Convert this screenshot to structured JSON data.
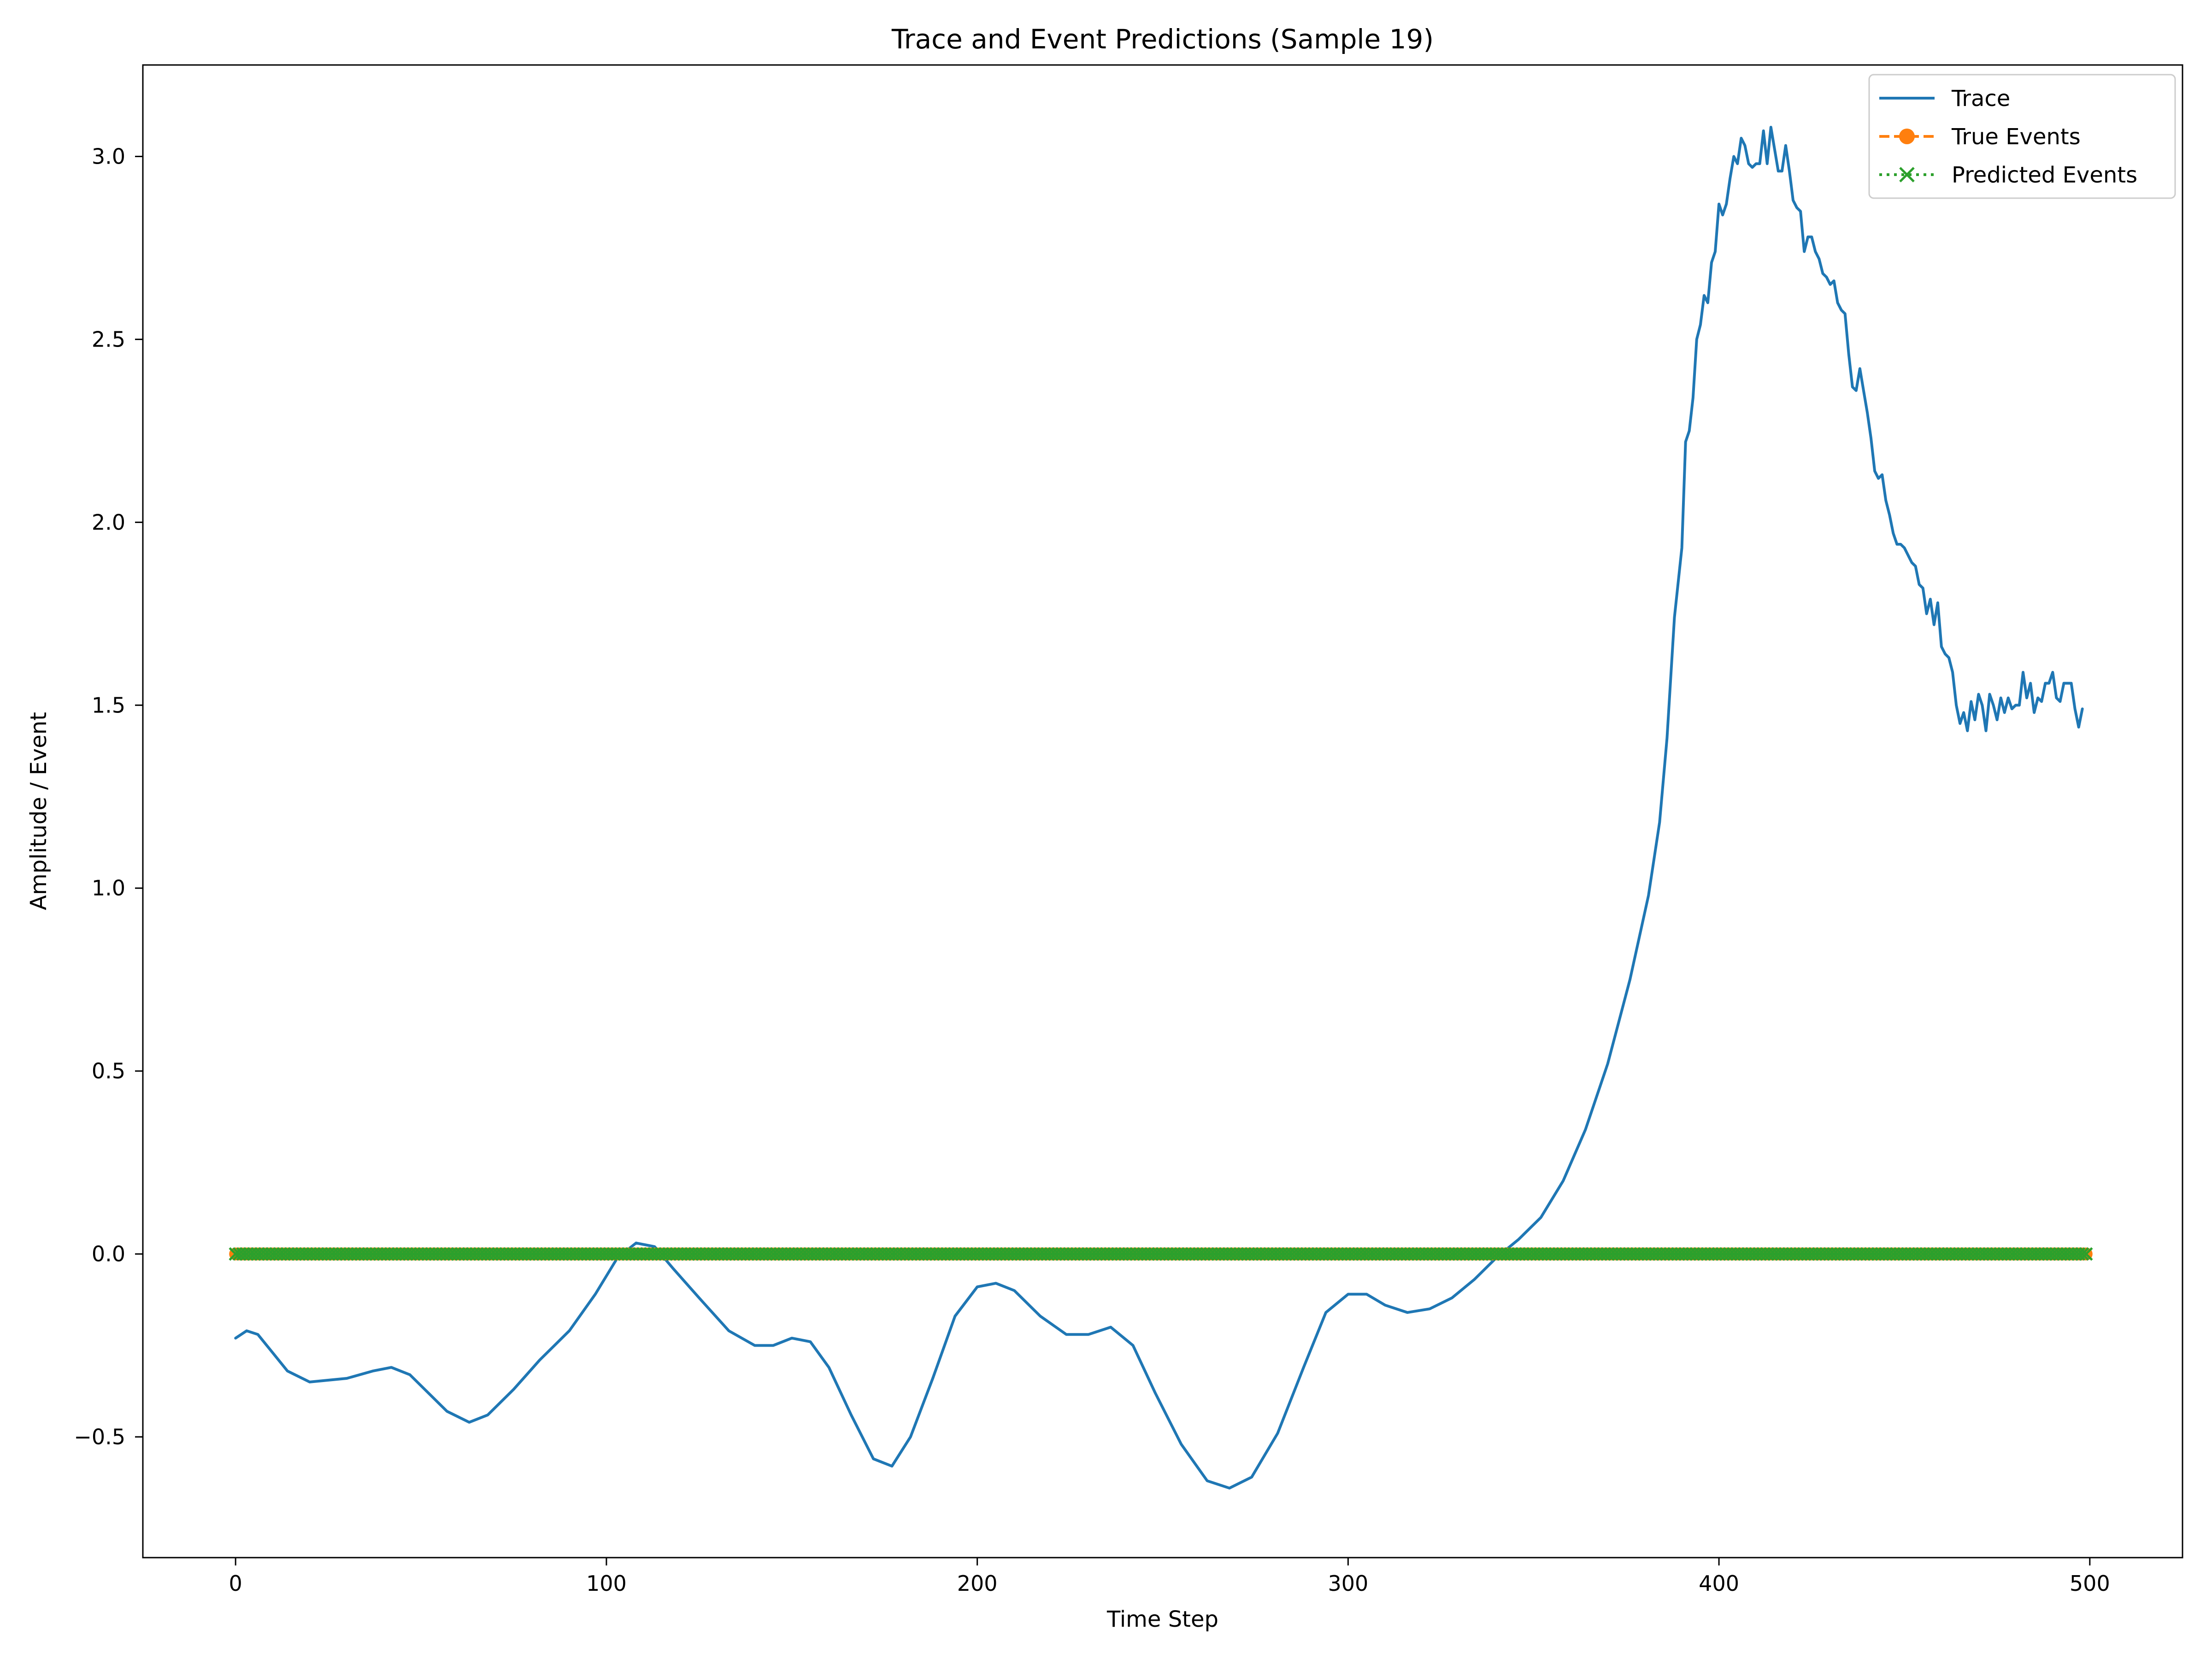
{
  "chart_data": {
    "type": "line",
    "title": "Trace and Event Predictions (Sample 19)",
    "xlabel": "Time Step",
    "ylabel": "Amplitude / Event",
    "xlim": [
      -25,
      525
    ],
    "ylim": [
      -0.83,
      3.25
    ],
    "xticks": [
      0,
      100,
      200,
      300,
      400,
      500
    ],
    "xtick_labels": [
      "0",
      "100",
      "200",
      "300",
      "400",
      "500"
    ],
    "yticks": [
      -0.5,
      0.0,
      0.5,
      1.0,
      1.5,
      2.0,
      2.5,
      3.0
    ],
    "ytick_labels": [
      "−0.5",
      "0.0",
      "0.5",
      "1.0",
      "1.5",
      "2.0",
      "2.5",
      "3.0"
    ],
    "grid": false,
    "legend_position": "top-right",
    "series": [
      {
        "name": "Trace",
        "color": "#1f77b4",
        "line_style": "solid",
        "marker": "none",
        "points": [
          [
            0,
            -0.23
          ],
          [
            3,
            -0.21
          ],
          [
            6,
            -0.22
          ],
          [
            10,
            -0.27
          ],
          [
            14,
            -0.32
          ],
          [
            20,
            -0.35
          ],
          [
            30,
            -0.34
          ],
          [
            37,
            -0.32
          ],
          [
            42,
            -0.31
          ],
          [
            47,
            -0.33
          ],
          [
            52,
            -0.38
          ],
          [
            57,
            -0.43
          ],
          [
            63,
            -0.46
          ],
          [
            68,
            -0.44
          ],
          [
            75,
            -0.37
          ],
          [
            82,
            -0.29
          ],
          [
            90,
            -0.21
          ],
          [
            97,
            -0.11
          ],
          [
            103,
            -0.01
          ],
          [
            108,
            0.03
          ],
          [
            113,
            0.02
          ],
          [
            118,
            -0.04
          ],
          [
            125,
            -0.12
          ],
          [
            133,
            -0.21
          ],
          [
            140,
            -0.25
          ],
          [
            145,
            -0.25
          ],
          [
            150,
            -0.23
          ],
          [
            155,
            -0.24
          ],
          [
            160,
            -0.31
          ],
          [
            166,
            -0.44
          ],
          [
            172,
            -0.56
          ],
          [
            177,
            -0.58
          ],
          [
            182,
            -0.5
          ],
          [
            188,
            -0.34
          ],
          [
            194,
            -0.17
          ],
          [
            200,
            -0.09
          ],
          [
            205,
            -0.08
          ],
          [
            210,
            -0.1
          ],
          [
            217,
            -0.17
          ],
          [
            224,
            -0.22
          ],
          [
            230,
            -0.22
          ],
          [
            236,
            -0.2
          ],
          [
            242,
            -0.25
          ],
          [
            248,
            -0.38
          ],
          [
            255,
            -0.52
          ],
          [
            262,
            -0.62
          ],
          [
            268,
            -0.64
          ],
          [
            274,
            -0.61
          ],
          [
            281,
            -0.49
          ],
          [
            288,
            -0.31
          ],
          [
            294,
            -0.16
          ],
          [
            300,
            -0.11
          ],
          [
            305,
            -0.11
          ],
          [
            310,
            -0.14
          ],
          [
            316,
            -0.16
          ],
          [
            322,
            -0.15
          ],
          [
            328,
            -0.12
          ],
          [
            334,
            -0.07
          ],
          [
            340,
            -0.01
          ],
          [
            346,
            0.04
          ],
          [
            352,
            0.1
          ],
          [
            358,
            0.2
          ],
          [
            364,
            0.34
          ],
          [
            370,
            0.52
          ],
          [
            376,
            0.75
          ],
          [
            381,
            0.98
          ],
          [
            384,
            1.18
          ],
          [
            386,
            1.41
          ],
          [
            388,
            1.74
          ],
          [
            390,
            1.93
          ],
          [
            391,
            2.22
          ],
          [
            392,
            2.25
          ],
          [
            393,
            2.34
          ],
          [
            394,
            2.5
          ],
          [
            395,
            2.54
          ],
          [
            396,
            2.62
          ],
          [
            397,
            2.6
          ],
          [
            398,
            2.71
          ],
          [
            399,
            2.74
          ],
          [
            400,
            2.87
          ],
          [
            401,
            2.84
          ],
          [
            402,
            2.87
          ],
          [
            403,
            2.94
          ],
          [
            404,
            3.0
          ],
          [
            405,
            2.98
          ],
          [
            406,
            3.05
          ],
          [
            407,
            3.03
          ],
          [
            408,
            2.98
          ],
          [
            409,
            2.97
          ],
          [
            410,
            2.98
          ],
          [
            411,
            2.98
          ],
          [
            412,
            3.07
          ],
          [
            413,
            2.98
          ],
          [
            414,
            3.08
          ],
          [
            415,
            3.02
          ],
          [
            416,
            2.96
          ],
          [
            417,
            2.96
          ],
          [
            418,
            3.03
          ],
          [
            419,
            2.96
          ],
          [
            420,
            2.88
          ],
          [
            421,
            2.86
          ],
          [
            422,
            2.85
          ],
          [
            423,
            2.74
          ],
          [
            424,
            2.78
          ],
          [
            425,
            2.78
          ],
          [
            426,
            2.74
          ],
          [
            427,
            2.72
          ],
          [
            428,
            2.68
          ],
          [
            429,
            2.67
          ],
          [
            430,
            2.65
          ],
          [
            431,
            2.66
          ],
          [
            432,
            2.6
          ],
          [
            433,
            2.58
          ],
          [
            434,
            2.57
          ],
          [
            435,
            2.46
          ],
          [
            436,
            2.37
          ],
          [
            437,
            2.36
          ],
          [
            438,
            2.42
          ],
          [
            439,
            2.36
          ],
          [
            440,
            2.3
          ],
          [
            441,
            2.23
          ],
          [
            442,
            2.14
          ],
          [
            443,
            2.12
          ],
          [
            444,
            2.13
          ],
          [
            445,
            2.06
          ],
          [
            446,
            2.02
          ],
          [
            447,
            1.97
          ],
          [
            448,
            1.94
          ],
          [
            449,
            1.94
          ],
          [
            450,
            1.93
          ],
          [
            451,
            1.91
          ],
          [
            452,
            1.89
          ],
          [
            453,
            1.88
          ],
          [
            454,
            1.83
          ],
          [
            455,
            1.82
          ],
          [
            456,
            1.75
          ],
          [
            457,
            1.79
          ],
          [
            458,
            1.72
          ],
          [
            459,
            1.78
          ],
          [
            460,
            1.66
          ],
          [
            461,
            1.64
          ],
          [
            462,
            1.63
          ],
          [
            463,
            1.59
          ],
          [
            464,
            1.5
          ],
          [
            465,
            1.45
          ],
          [
            466,
            1.48
          ],
          [
            467,
            1.43
          ],
          [
            468,
            1.51
          ],
          [
            469,
            1.46
          ],
          [
            470,
            1.53
          ],
          [
            471,
            1.5
          ],
          [
            472,
            1.43
          ],
          [
            473,
            1.53
          ],
          [
            474,
            1.5
          ],
          [
            475,
            1.46
          ],
          [
            476,
            1.52
          ],
          [
            477,
            1.48
          ],
          [
            478,
            1.52
          ],
          [
            479,
            1.49
          ],
          [
            480,
            1.5
          ],
          [
            481,
            1.5
          ],
          [
            482,
            1.59
          ],
          [
            483,
            1.52
          ],
          [
            484,
            1.56
          ],
          [
            485,
            1.48
          ],
          [
            486,
            1.52
          ],
          [
            487,
            1.51
          ],
          [
            488,
            1.56
          ],
          [
            489,
            1.56
          ],
          [
            490,
            1.59
          ],
          [
            491,
            1.52
          ],
          [
            492,
            1.51
          ],
          [
            493,
            1.56
          ],
          [
            494,
            1.56
          ],
          [
            495,
            1.56
          ],
          [
            496,
            1.49
          ],
          [
            497,
            1.44
          ],
          [
            498,
            1.49
          ]
        ]
      },
      {
        "name": "True Events",
        "color": "#ff7f0e",
        "line_style": "dashed",
        "marker": "circle",
        "x_start": 0,
        "x_end": 499,
        "value": 0
      },
      {
        "name": "Predicted Events",
        "color": "#2ca02c",
        "line_style": "dotted",
        "marker": "x",
        "x_start": 0,
        "x_end": 499,
        "value": 0
      }
    ]
  }
}
